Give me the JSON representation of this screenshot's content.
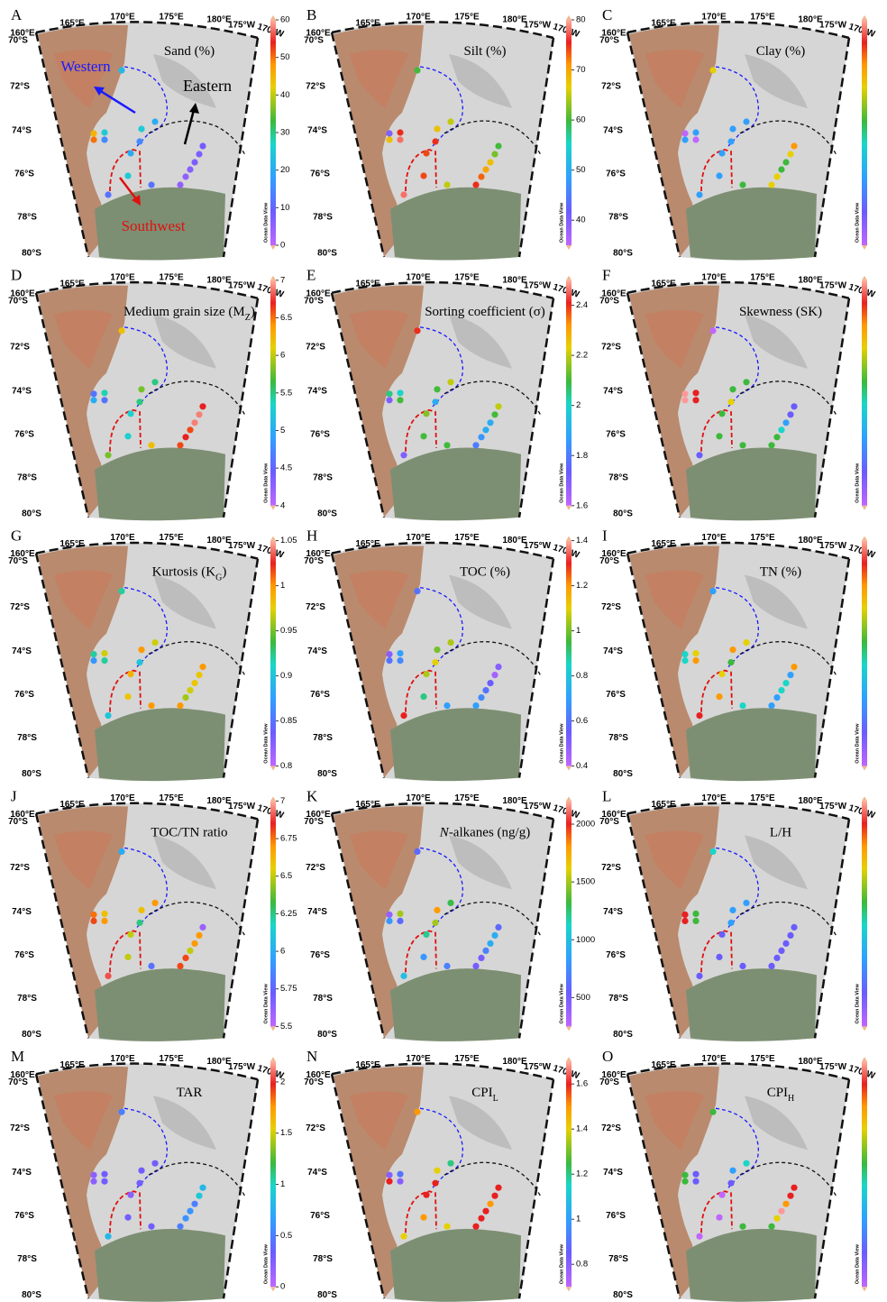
{
  "lon_labels": [
    "160°E",
    "165°E",
    "170°E",
    "175°E",
    "180°E",
    "175°W",
    "170°W"
  ],
  "lat_labels": [
    "70°S",
    "72°S",
    "74°S",
    "76°S",
    "78°S",
    "80°S"
  ],
  "colorbar_label": "Ocean Data View",
  "annotations": [
    {
      "text": "Western",
      "color": "#1a1aff"
    },
    {
      "text": "Eastern",
      "color": "#000000"
    },
    {
      "text": "Southwest",
      "color": "#e01010"
    }
  ],
  "panels": [
    {
      "letter": "A",
      "title": [
        {
          "text": "Sand (%)"
        }
      ],
      "clim": [
        0,
        60
      ],
      "ticks": [
        0,
        10,
        20,
        30,
        40,
        50,
        60
      ],
      "values": [
        22,
        45,
        25,
        50,
        15,
        25,
        20,
        15,
        20,
        8,
        7,
        7,
        6,
        5,
        5,
        25,
        12,
        12
      ]
    },
    {
      "letter": "B",
      "title": [
        {
          "text": "Silt (%)"
        }
      ],
      "clim": [
        35,
        80
      ],
      "ticks": [
        40,
        50,
        60,
        70,
        80
      ],
      "values": [
        60,
        40,
        75,
        68,
        78,
        68,
        65,
        75,
        74,
        60,
        62,
        68,
        70,
        73,
        75,
        74,
        78,
        65
      ]
    },
    {
      "letter": "C",
      "title": [
        {
          "text": "Clay (%)"
        }
      ],
      "colors": [
        "#e6d000",
        "#c066ff",
        "#2fa0ff",
        "#2fa0ff",
        "#c066ff",
        "#2fa0ff",
        "#2fa0ff",
        "#2fa0ff",
        "#2fa0ff",
        "#ff9900",
        "#e6d000",
        "#3cb93c",
        "#3cb93c",
        "#e6d000",
        "#e6d000",
        "#2fa0ff",
        "#2fa0ff",
        "#3cb93c"
      ]
    },
    {
      "letter": "D",
      "title": [
        {
          "text": "Medium grain size (M"
        },
        {
          "text": "Z",
          "style": "sub"
        },
        {
          "text": ")"
        }
      ],
      "clim": [
        4,
        7
      ],
      "ticks": [
        4,
        4.5,
        5,
        5.5,
        6,
        6.5,
        7
      ],
      "values": [
        6.2,
        4.6,
        5.4,
        5.0,
        4.6,
        5.8,
        5.5,
        5.5,
        5.3,
        6.7,
        6.9,
        6.9,
        6.6,
        6.7,
        6.6,
        5.3,
        5.8,
        6.2
      ]
    },
    {
      "letter": "E",
      "title": [
        {
          "text": "Sorting coefficient (σ)"
        }
      ],
      "clim": [
        1.6,
        2.5
      ],
      "ticks": [
        1.6,
        1.8,
        2,
        2.2,
        2.4
      ],
      "values": [
        2.4,
        2.05,
        2.0,
        1.7,
        2.1,
        2.1,
        2.2,
        1.9,
        2.15,
        2.2,
        2.1,
        1.9,
        1.9,
        1.85,
        1.8,
        2.1,
        1.7,
        2.1
      ]
    },
    {
      "letter": "F",
      "title": [
        {
          "text": "Skewness (SK)"
        }
      ],
      "colors": [
        "#c066ff",
        "#ff9999",
        "#e82020",
        "#ff9999",
        "#e82020",
        "#3cb93c",
        "#3cb93c",
        "#e6d000",
        "#3cb93c",
        "#6a5cff",
        "#6a5cff",
        "#2fa0ff",
        "#19d6c8",
        "#3cb93c",
        "#3cb93c",
        "#3cb93c",
        "#6a5cff",
        "#3cb93c"
      ]
    },
    {
      "letter": "G",
      "title": [
        {
          "text": "Kurtosis (K"
        },
        {
          "text": "G",
          "style": "sub"
        },
        {
          "text": ")"
        }
      ],
      "clim": [
        0.8,
        1.05
      ],
      "ticks": [
        0.8,
        0.85,
        0.9,
        0.95,
        1,
        1.05
      ],
      "values": [
        0.92,
        0.92,
        0.97,
        0.87,
        0.92,
        1.0,
        0.97,
        0.9,
        0.99,
        1.0,
        0.98,
        0.98,
        0.97,
        0.96,
        1.0,
        0.98,
        0.9,
        1.0
      ]
    },
    {
      "letter": "H",
      "title": [
        {
          "text": "TOC (%)"
        }
      ],
      "clim": [
        0.4,
        1.4
      ],
      "ticks": [
        0.4,
        0.6,
        0.8,
        1,
        1.2,
        1.4
      ],
      "values": [
        0.6,
        0.5,
        0.7,
        0.6,
        0.65,
        1.0,
        1.05,
        1.1,
        1.05,
        0.5,
        0.45,
        0.55,
        0.6,
        0.65,
        0.7,
        0.9,
        1.3,
        0.7
      ]
    },
    {
      "letter": "I",
      "title": [
        {
          "text": "TN (%)"
        }
      ],
      "colors": [
        "#2fa0ff",
        "#19d6c8",
        "#e6d000",
        "#19d6c8",
        "#ff9900",
        "#ff9900",
        "#e6d000",
        "#3cb93c",
        "#e6d000",
        "#ff9900",
        "#2fa0ff",
        "#19d6c8",
        "#19d6c8",
        "#2fa0ff",
        "#2fa0ff",
        "#ff9900",
        "#e82020",
        "#19d6c8"
      ]
    },
    {
      "letter": "J",
      "title": [
        {
          "text": "TOC/TN ratio"
        }
      ],
      "clim": [
        5.5,
        7
      ],
      "ticks": [
        5.5,
        5.75,
        6,
        6.25,
        6.5,
        6.75,
        7
      ],
      "values": [
        6.0,
        6.75,
        6.6,
        6.8,
        6.7,
        6.6,
        6.7,
        6.25,
        6.5,
        5.6,
        6.7,
        6.7,
        6.5,
        6.8,
        6.8,
        6.5,
        6.9,
        5.8
      ]
    },
    {
      "letter": "K",
      "title": [
        {
          "text": "N",
          "style": "italic"
        },
        {
          "text": "-alkanes (ng/g)"
        }
      ],
      "clim": [
        250,
        2200
      ],
      "ticks": [
        500,
        1000,
        1500,
        2000
      ],
      "values": [
        600,
        400,
        1500,
        800,
        600,
        1800,
        1300,
        1500,
        1200,
        600,
        900,
        900,
        700,
        500,
        500,
        800,
        1000,
        700
      ]
    },
    {
      "letter": "L",
      "title": [
        {
          "text": "L/H"
        }
      ],
      "colors": [
        "#19d6c8",
        "#e82020",
        "#3cb93c",
        "#e82020",
        "#3cb93c",
        "#2fa0ff",
        "#2fa0ff",
        "#2fa0ff",
        "#6a5cff",
        "#6a5cff",
        "#6a5cff",
        "#6a5cff",
        "#6a5cff",
        "#6a5cff",
        "#6a5cff",
        "#6a5cff",
        "#6a5cff",
        "#6a5cff"
      ]
    },
    {
      "letter": "M",
      "title": [
        {
          "text": "TAR"
        }
      ],
      "clim": [
        0,
        2.2
      ],
      "ticks": [
        0,
        0.5,
        1,
        1.5,
        2
      ],
      "values": [
        0.5,
        0.2,
        0.3,
        0.2,
        0.3,
        0.3,
        0.3,
        0.3,
        0.2,
        0.8,
        0.9,
        0.5,
        0.6,
        0.6,
        0.5,
        0.3,
        0.8,
        0.3
      ]
    },
    {
      "letter": "N",
      "title": [
        {
          "text": "CPI"
        },
        {
          "text": "L",
          "style": "sub"
        }
      ],
      "clim": [
        0.7,
        1.7
      ],
      "ticks": [
        0.8,
        1,
        1.2,
        1.4,
        1.6
      ],
      "values": [
        1.5,
        0.8,
        0.9,
        1.6,
        0.8,
        1.4,
        1.2,
        1.6,
        1.6,
        1.6,
        1.6,
        1.5,
        1.6,
        1.6,
        1.6,
        1.5,
        1.4,
        1.4
      ]
    },
    {
      "letter": "O",
      "title": [
        {
          "text": "CPI"
        },
        {
          "text": "H",
          "style": "sub"
        }
      ],
      "colors": [
        "#3cb93c",
        "#3cb93c",
        "#6a5cff",
        "#3cb93c",
        "#6a5cff",
        "#2fa0ff",
        "#19d6c8",
        "#6a5cff",
        "#c066ff",
        "#e82020",
        "#e82020",
        "#ff9900",
        "#ff9999",
        "#e6d000",
        "#3cb93c",
        "#c066ff",
        "#c066ff",
        "#3cb93c"
      ]
    }
  ]
}
